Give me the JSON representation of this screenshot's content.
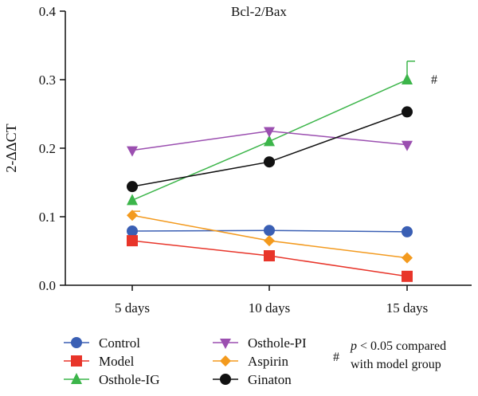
{
  "chart_data": {
    "type": "line",
    "title": "Bcl-2/Bax",
    "ylabel": "2-ΔΔCT",
    "xlabel": "",
    "categories": [
      "5 days",
      "10 days",
      "15 days"
    ],
    "ylim": [
      0.0,
      0.4
    ],
    "yticks": [
      "0.0",
      "0.1",
      "0.2",
      "0.3",
      "0.4"
    ],
    "grid": false,
    "legend_position": "bottom",
    "series": [
      {
        "name": "Control",
        "values": [
          0.079,
          0.08,
          0.078
        ],
        "color": "#3a5fb4",
        "marker": "circle"
      },
      {
        "name": "Model",
        "values": [
          0.065,
          0.043,
          0.013
        ],
        "color": "#e8352a",
        "marker": "square"
      },
      {
        "name": "Osthole-IG",
        "values": [
          0.124,
          0.21,
          0.3
        ],
        "color": "#3cb54a",
        "marker": "triangle-up",
        "error": [
          0.0,
          0.0,
          0.027
        ]
      },
      {
        "name": "Osthole-PI",
        "values": [
          0.197,
          0.225,
          0.205
        ],
        "color": "#9b4fb0",
        "marker": "triangle-down"
      },
      {
        "name": "Aspirin",
        "values": [
          0.102,
          0.065,
          0.04
        ],
        "color": "#f39a1e",
        "marker": "diamond",
        "error": [
          0.006,
          0.0,
          0.0
        ]
      },
      {
        "name": "Ginaton",
        "values": [
          0.144,
          0.18,
          0.253
        ],
        "color": "#111111",
        "marker": "circle-black"
      }
    ],
    "annotations": [
      {
        "text": "#",
        "category": "15 days",
        "series": "Osthole-IG"
      }
    ],
    "legend_note": {
      "symbol": "#",
      "p_text": "p",
      "line1_rest": " < 0.05 compared",
      "line2": "with model group"
    }
  }
}
